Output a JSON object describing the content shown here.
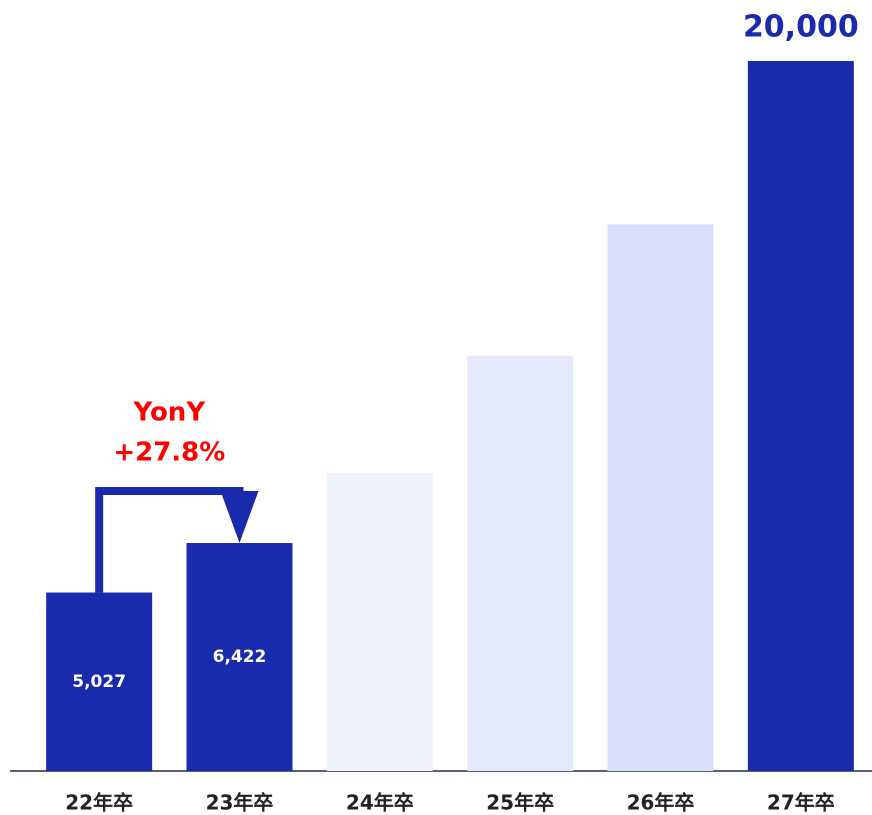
{
  "chart_data": {
    "type": "bar",
    "categories": [
      "22年卒",
      "23年卒",
      "24年卒",
      "25年卒",
      "26年卒",
      "27年卒"
    ],
    "values": [
      5027,
      6422,
      8400,
      11700,
      15400,
      20000
    ],
    "value_labels": [
      "5,027",
      "6,422",
      null,
      null,
      null,
      "20,000"
    ],
    "colors": [
      "#1a2aad",
      "#1a2aad",
      "#eef2fb",
      "#e3e9fb",
      "#d6e0fa",
      "#1a2aad"
    ],
    "ylim": [
      0,
      20000
    ],
    "annotation": [
      "YonY",
      "+27.8%"
    ],
    "annotation_color": "#ff0000"
  }
}
